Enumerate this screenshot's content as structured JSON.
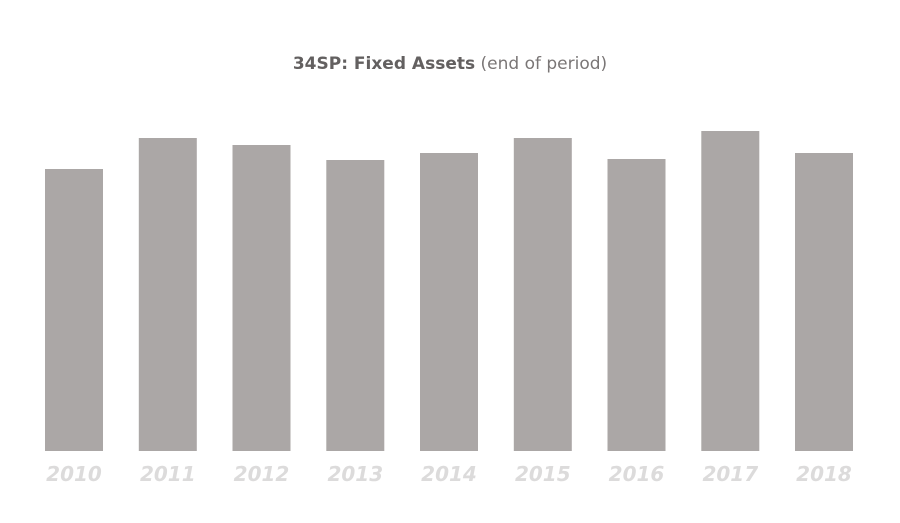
{
  "chart_title": {
    "main": "34SP: Fixed Assets",
    "suffix": "(end of period)"
  },
  "colors": {
    "bar": "#aba7a6",
    "tick_label": "#dcdbdb",
    "title": "#636060",
    "background": "#ffffff"
  },
  "chart_data": {
    "type": "bar",
    "title": "34SP: Fixed Assets (end of period)",
    "xlabel": "",
    "ylabel": "",
    "categories": [
      "2010",
      "2011",
      "2012",
      "2013",
      "2014",
      "2015",
      "2016",
      "2017",
      "2018"
    ],
    "values": [
      282,
      313,
      306,
      291,
      298,
      313,
      292,
      320,
      298
    ],
    "ylim": [
      0,
      330
    ],
    "grid": false,
    "legend": "none",
    "value_axis_visible": false
  }
}
